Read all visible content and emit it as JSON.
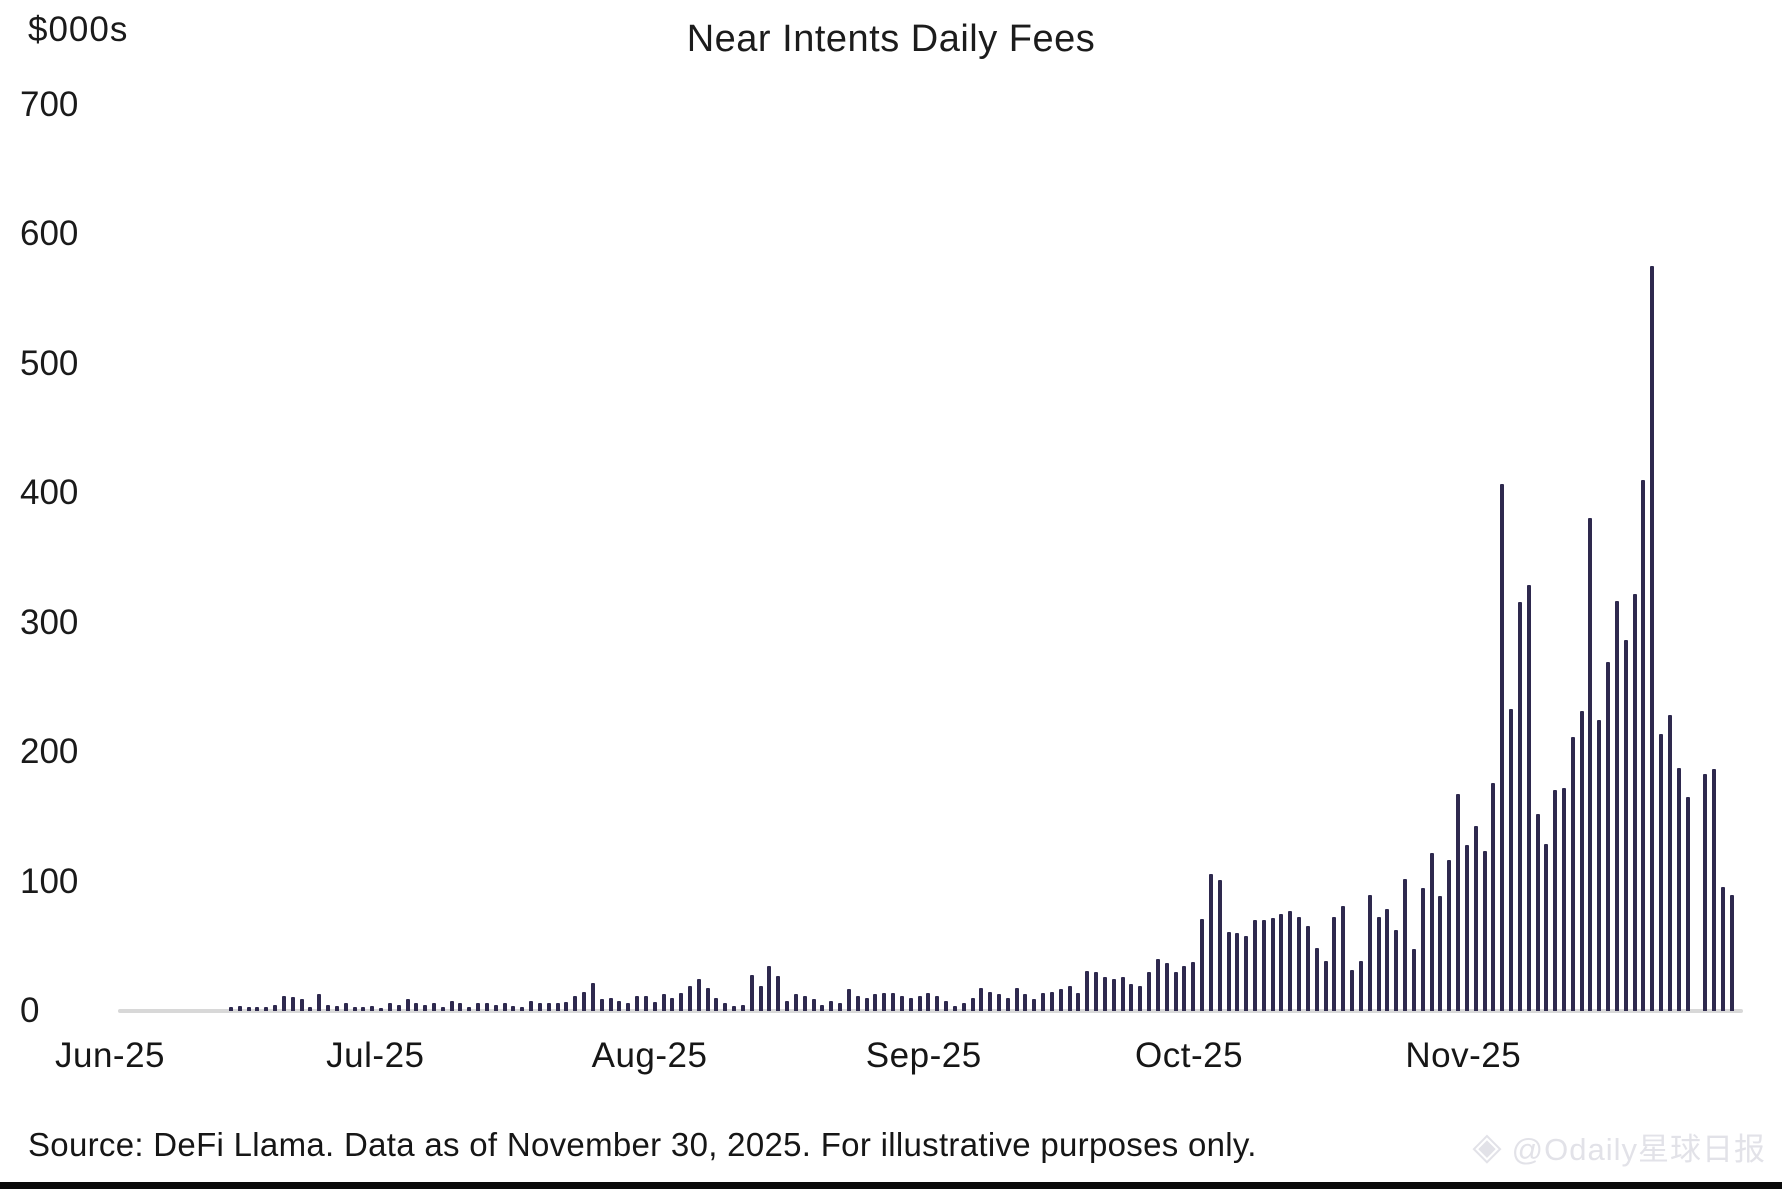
{
  "header": {
    "title": "Near Intents Daily Fees",
    "unit_label": "$000s"
  },
  "footer": {
    "source": "Source: DeFi Llama. Data as of November 30, 2025. For illustrative purposes only."
  },
  "watermark": {
    "logo_icon": "odaily-diamond-logo",
    "handle": "@Odaily星球日报"
  },
  "colors": {
    "bar": "#2e294e",
    "axis_line": "#d8d8d8",
    "text": "#1a1a1a",
    "watermark": "#e2e2e8",
    "bottom_strip": "#0a0a0a"
  },
  "chart_data": {
    "type": "bar",
    "title": "Near Intents Daily Fees",
    "ylabel": "$000s",
    "ylim": [
      0,
      700
    ],
    "y_ticks": [
      0,
      100,
      200,
      300,
      400,
      500,
      600,
      700
    ],
    "grid": false,
    "legend": "none",
    "x_tick_labels": [
      "Jun-25",
      "Jul-25",
      "Aug-25",
      "Sep-25",
      "Oct-25",
      "Nov-25"
    ],
    "x_ticks": [
      {
        "label": "Jun-25",
        "day_index": 0
      },
      {
        "label": "Jul-25",
        "day_index": 30
      },
      {
        "label": "Aug-25",
        "day_index": 61
      },
      {
        "label": "Sep-25",
        "day_index": 92
      },
      {
        "label": "Oct-25",
        "day_index": 122
      },
      {
        "label": "Nov-25",
        "day_index": 153
      }
    ],
    "date_start": "2025-06-01",
    "date_end": "2025-11-30",
    "frequency": "daily",
    "values": [
      0,
      0,
      0,
      0,
      0,
      0,
      0,
      0,
      0,
      0,
      0,
      0,
      3,
      4,
      3,
      3,
      3,
      5,
      12,
      11,
      9,
      3,
      13,
      5,
      4,
      6,
      3,
      3,
      4,
      2,
      6,
      5,
      9,
      6,
      5,
      6,
      3,
      8,
      6,
      3,
      6,
      6,
      5,
      6,
      4,
      3,
      8,
      6,
      6,
      6,
      7,
      12,
      15,
      22,
      9,
      10,
      8,
      6,
      12,
      12,
      7,
      13,
      10,
      14,
      19,
      25,
      18,
      10,
      6,
      4,
      5,
      28,
      19,
      35,
      27,
      8,
      13,
      12,
      9,
      5,
      8,
      6,
      17,
      12,
      10,
      13,
      14,
      14,
      12,
      10,
      12,
      14,
      12,
      8,
      4,
      6,
      10,
      18,
      15,
      13,
      10,
      18,
      13,
      9,
      14,
      15,
      17,
      19,
      14,
      31,
      30,
      26,
      25,
      26,
      21,
      19,
      30,
      40,
      37,
      30,
      35,
      38,
      71,
      106,
      101,
      61,
      60,
      58,
      70,
      70,
      72,
      75,
      77,
      73,
      66,
      49,
      39,
      73,
      81,
      32,
      39,
      90,
      73,
      79,
      63,
      102,
      48,
      95,
      122,
      89,
      117,
      168,
      128,
      143,
      124,
      176,
      407,
      233,
      316,
      329,
      152,
      129,
      171,
      172,
      212,
      232,
      381,
      225,
      270,
      317,
      287,
      322,
      410,
      576,
      214,
      229,
      188,
      165,
      0,
      183,
      187,
      96,
      90
    ]
  }
}
